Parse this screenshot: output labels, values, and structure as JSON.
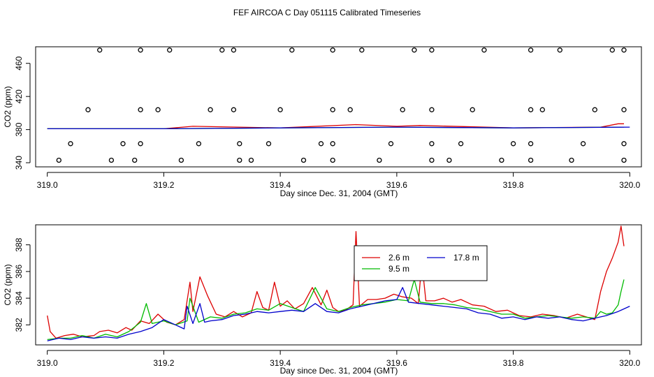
{
  "title": "FEF AIRCOA C  Day 051115  Calibrated Timeseries",
  "chart_data": [
    {
      "type": "scatter+line",
      "xlabel": "Day since Dec. 31, 2004 (GMT)",
      "ylabel": "CO2 (ppm)",
      "xlim": [
        318.98,
        320.02
      ],
      "ylim": [
        335,
        480
      ],
      "xticks": [
        "319.0",
        "319.2",
        "319.4",
        "319.6",
        "319.8",
        "320.0"
      ],
      "xtick_values": [
        319.0,
        319.2,
        319.4,
        319.6,
        319.8,
        320.0
      ],
      "yticks": [
        "340",
        "380",
        "420",
        "460"
      ],
      "ytick_values": [
        340,
        380,
        420,
        460
      ],
      "scatter_points": [
        {
          "x": 319.09,
          "y": 476
        },
        {
          "x": 319.16,
          "y": 476
        },
        {
          "x": 319.21,
          "y": 476
        },
        {
          "x": 319.3,
          "y": 476
        },
        {
          "x": 319.32,
          "y": 476
        },
        {
          "x": 319.42,
          "y": 476
        },
        {
          "x": 319.49,
          "y": 476
        },
        {
          "x": 319.54,
          "y": 476
        },
        {
          "x": 319.63,
          "y": 476
        },
        {
          "x": 319.66,
          "y": 476
        },
        {
          "x": 319.75,
          "y": 476
        },
        {
          "x": 319.83,
          "y": 476
        },
        {
          "x": 319.88,
          "y": 476
        },
        {
          "x": 319.97,
          "y": 476
        },
        {
          "x": 319.99,
          "y": 476
        },
        {
          "x": 319.07,
          "y": 404
        },
        {
          "x": 319.16,
          "y": 404
        },
        {
          "x": 319.19,
          "y": 404
        },
        {
          "x": 319.28,
          "y": 404
        },
        {
          "x": 319.32,
          "y": 404
        },
        {
          "x": 319.4,
          "y": 404
        },
        {
          "x": 319.49,
          "y": 404
        },
        {
          "x": 319.52,
          "y": 404
        },
        {
          "x": 319.61,
          "y": 404
        },
        {
          "x": 319.66,
          "y": 404
        },
        {
          "x": 319.73,
          "y": 404
        },
        {
          "x": 319.83,
          "y": 404
        },
        {
          "x": 319.85,
          "y": 404
        },
        {
          "x": 319.94,
          "y": 404
        },
        {
          "x": 319.99,
          "y": 404
        },
        {
          "x": 319.04,
          "y": 363
        },
        {
          "x": 319.13,
          "y": 363
        },
        {
          "x": 319.16,
          "y": 363
        },
        {
          "x": 319.26,
          "y": 363
        },
        {
          "x": 319.33,
          "y": 363
        },
        {
          "x": 319.38,
          "y": 363
        },
        {
          "x": 319.47,
          "y": 363
        },
        {
          "x": 319.49,
          "y": 363
        },
        {
          "x": 319.59,
          "y": 363
        },
        {
          "x": 319.66,
          "y": 363
        },
        {
          "x": 319.71,
          "y": 363
        },
        {
          "x": 319.8,
          "y": 363
        },
        {
          "x": 319.83,
          "y": 363
        },
        {
          "x": 319.92,
          "y": 363
        },
        {
          "x": 319.99,
          "y": 363
        },
        {
          "x": 319.02,
          "y": 343
        },
        {
          "x": 319.11,
          "y": 343
        },
        {
          "x": 319.15,
          "y": 343
        },
        {
          "x": 319.23,
          "y": 343
        },
        {
          "x": 319.33,
          "y": 343
        },
        {
          "x": 319.35,
          "y": 343
        },
        {
          "x": 319.44,
          "y": 343
        },
        {
          "x": 319.49,
          "y": 343
        },
        {
          "x": 319.57,
          "y": 343
        },
        {
          "x": 319.66,
          "y": 343
        },
        {
          "x": 319.69,
          "y": 343
        },
        {
          "x": 319.78,
          "y": 343
        },
        {
          "x": 319.83,
          "y": 343
        },
        {
          "x": 319.9,
          "y": 343
        },
        {
          "x": 319.99,
          "y": 343
        }
      ],
      "series": [
        {
          "name": "2.6 m",
          "color": "#dd0000",
          "x": [
            319.0,
            319.2,
            319.25,
            319.4,
            319.53,
            319.6,
            319.64,
            319.8,
            319.95,
            319.98,
            319.99
          ],
          "values": [
            381,
            381,
            384,
            382,
            386,
            384,
            385,
            382,
            383,
            387,
            387
          ]
        },
        {
          "name": "9.5 m",
          "color": "#00bb00",
          "x": [
            319.0,
            319.2,
            319.4,
            319.6,
            319.8,
            319.99
          ],
          "values": [
            381,
            381,
            382,
            383,
            382,
            383
          ]
        },
        {
          "name": "17.8 m",
          "color": "#0000cc",
          "x": [
            319.0,
            319.2,
            319.4,
            319.6,
            319.8,
            320.0
          ],
          "values": [
            381,
            381,
            382,
            383,
            382,
            383
          ]
        }
      ]
    },
    {
      "type": "line",
      "xlabel": "Day since Dec. 31, 2004 (GMT)",
      "ylabel": "CO2 (ppm)",
      "xlim": [
        318.98,
        320.02
      ],
      "ylim": [
        380.5,
        389.5
      ],
      "xticks": [
        "319.0",
        "319.2",
        "319.4",
        "319.6",
        "319.8",
        "320.0"
      ],
      "xtick_values": [
        319.0,
        319.2,
        319.4,
        319.6,
        319.8,
        320.0
      ],
      "yticks": [
        "382",
        "384",
        "386",
        "388"
      ],
      "ytick_values": [
        382,
        384,
        386,
        388
      ],
      "legend": {
        "placement": "top-center",
        "entries": [
          "2.6 m",
          "9.5 m",
          "17.8 m"
        ]
      },
      "series": [
        {
          "name": "2.6 m",
          "color": "#dd0000",
          "x": [
            319.0,
            319.005,
            319.015,
            319.03,
            319.045,
            319.06,
            319.08,
            319.09,
            319.105,
            319.12,
            319.135,
            319.145,
            319.16,
            319.175,
            319.19,
            319.205,
            319.22,
            319.235,
            319.245,
            319.25,
            319.262,
            319.275,
            319.29,
            319.305,
            319.32,
            319.335,
            319.35,
            319.36,
            319.37,
            319.38,
            319.39,
            319.4,
            319.412,
            319.425,
            319.44,
            319.455,
            319.47,
            319.48,
            319.49,
            319.5,
            319.512,
            319.525,
            319.53,
            319.536,
            319.55,
            319.565,
            319.58,
            319.595,
            319.61,
            319.625,
            319.637,
            319.643,
            319.65,
            319.665,
            319.68,
            319.695,
            319.71,
            319.73,
            319.75,
            319.77,
            319.79,
            319.81,
            319.83,
            319.85,
            319.87,
            319.89,
            319.91,
            319.925,
            319.94,
            319.95,
            319.96,
            319.97,
            319.98,
            319.985,
            319.99
          ],
          "values": [
            382.7,
            381.5,
            381.0,
            381.2,
            381.3,
            381.1,
            381.2,
            381.5,
            381.6,
            381.4,
            381.8,
            381.6,
            382.3,
            382.1,
            382.8,
            382.2,
            382.0,
            382.4,
            385.2,
            383.0,
            385.6,
            384.2,
            382.8,
            382.6,
            383.0,
            382.6,
            382.9,
            384.5,
            383.3,
            383.1,
            385.2,
            383.4,
            383.8,
            383.2,
            383.6,
            384.8,
            383.5,
            384.6,
            383.3,
            383.0,
            383.1,
            383.5,
            389.0,
            383.4,
            383.9,
            383.9,
            384.0,
            384.3,
            384.1,
            384.0,
            383.6,
            386.7,
            383.8,
            383.8,
            384.0,
            383.7,
            383.9,
            383.5,
            383.4,
            383.0,
            383.1,
            382.7,
            382.6,
            382.8,
            382.7,
            382.5,
            382.8,
            382.6,
            382.4,
            384.5,
            386.0,
            387.0,
            388.2,
            389.4,
            387.9
          ]
        },
        {
          "name": "9.5 m",
          "color": "#00bb00",
          "x": [
            319.0,
            319.02,
            319.04,
            319.06,
            319.08,
            319.1,
            319.12,
            319.14,
            319.16,
            319.17,
            319.18,
            319.2,
            319.22,
            319.24,
            319.245,
            319.26,
            319.28,
            319.3,
            319.32,
            319.34,
            319.36,
            319.38,
            319.4,
            319.42,
            319.44,
            319.46,
            319.48,
            319.5,
            319.52,
            319.54,
            319.56,
            319.58,
            319.6,
            319.62,
            319.63,
            319.64,
            319.66,
            319.68,
            319.7,
            319.72,
            319.74,
            319.76,
            319.78,
            319.8,
            319.82,
            319.84,
            319.86,
            319.88,
            319.9,
            319.92,
            319.94,
            319.95,
            319.96,
            319.97,
            319.98,
            319.985,
            319.99
          ],
          "values": [
            380.9,
            381.0,
            381.0,
            381.2,
            381.0,
            381.3,
            381.1,
            381.5,
            382.2,
            383.6,
            382.1,
            382.3,
            382.0,
            382.3,
            384.0,
            382.2,
            382.6,
            382.5,
            382.8,
            382.9,
            383.2,
            383.1,
            383.6,
            383.3,
            383.0,
            384.8,
            383.2,
            383.0,
            383.3,
            383.5,
            383.6,
            383.7,
            383.9,
            383.8,
            385.4,
            383.7,
            383.6,
            383.6,
            383.5,
            383.3,
            383.2,
            383.0,
            382.8,
            382.8,
            382.5,
            382.6,
            382.7,
            382.6,
            382.5,
            382.6,
            382.5,
            383.0,
            382.8,
            382.9,
            383.5,
            384.5,
            385.4
          ]
        },
        {
          "name": "17.8 m",
          "color": "#0000cc",
          "x": [
            319.0,
            319.02,
            319.04,
            319.06,
            319.08,
            319.1,
            319.12,
            319.14,
            319.16,
            319.18,
            319.2,
            319.22,
            319.235,
            319.24,
            319.25,
            319.262,
            319.27,
            319.28,
            319.3,
            319.32,
            319.34,
            319.36,
            319.38,
            319.4,
            319.42,
            319.44,
            319.46,
            319.48,
            319.5,
            319.52,
            319.54,
            319.56,
            319.58,
            319.6,
            319.61,
            319.62,
            319.64,
            319.66,
            319.68,
            319.7,
            319.72,
            319.74,
            319.76,
            319.78,
            319.8,
            319.82,
            319.84,
            319.86,
            319.88,
            319.9,
            319.92,
            319.94,
            319.96,
            319.98,
            320.0
          ],
          "values": [
            380.8,
            381.0,
            380.9,
            381.1,
            381.0,
            381.1,
            381.0,
            381.3,
            381.5,
            381.8,
            382.4,
            382.0,
            381.7,
            383.4,
            382.1,
            383.6,
            382.2,
            382.3,
            382.4,
            382.7,
            382.8,
            383.0,
            382.9,
            383.0,
            383.1,
            383.0,
            383.6,
            383.0,
            382.9,
            383.2,
            383.4,
            383.6,
            383.8,
            383.9,
            384.8,
            383.7,
            383.6,
            383.5,
            383.4,
            383.3,
            383.2,
            382.9,
            382.8,
            382.5,
            382.6,
            382.4,
            382.6,
            382.5,
            382.6,
            382.4,
            382.3,
            382.5,
            382.7,
            383.0,
            383.4
          ]
        }
      ]
    }
  ]
}
